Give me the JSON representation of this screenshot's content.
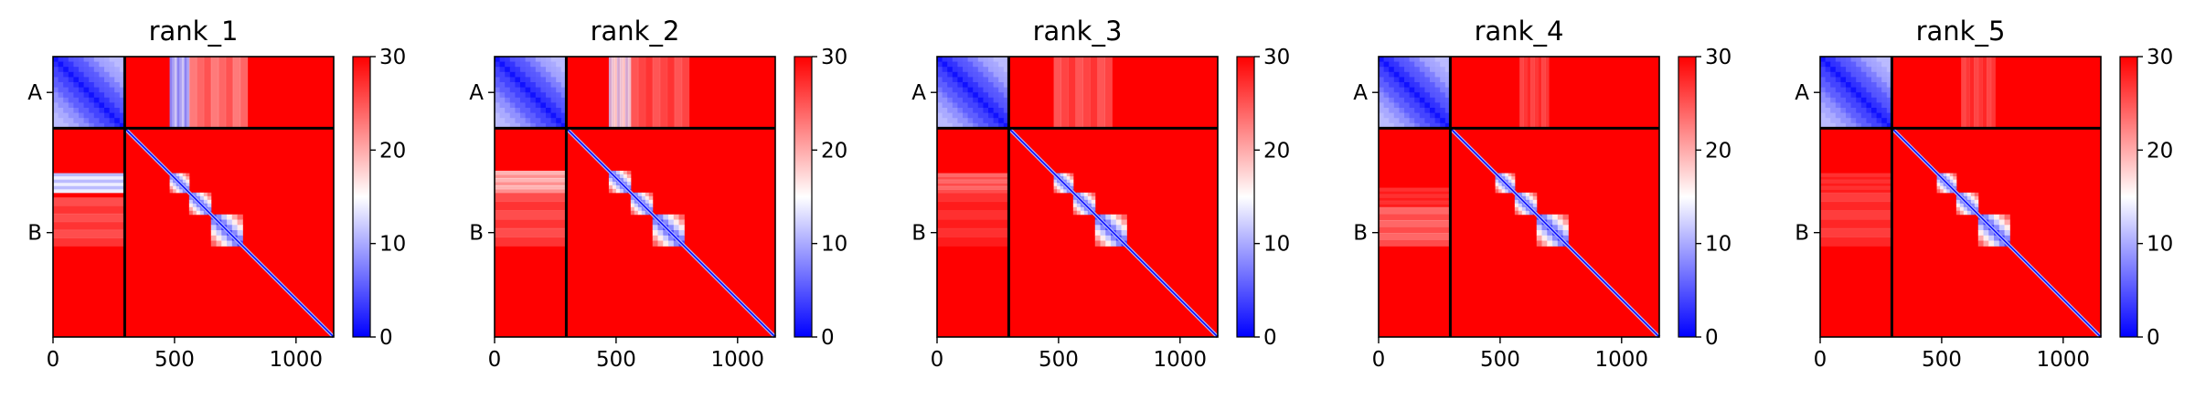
{
  "chart_data": {
    "type": "heatmap",
    "chain_labels": [
      "A",
      "B"
    ],
    "chain_boundary": 295,
    "matrix_size": 1155,
    "xticks": [
      0,
      500,
      1000
    ],
    "colorbar": {
      "vmin": 0,
      "vmax": 30,
      "ticks": [
        0,
        10,
        20,
        30
      ],
      "colors": [
        "#0000ff",
        "#ffffff",
        "#ff0000"
      ]
    },
    "panels": [
      {
        "title": "rank_1",
        "intra_a_strength": 1.0,
        "inter_ab_bands": [
          {
            "ab_start": 480,
            "ab_end": 560,
            "strength": 0.8,
            "level": 10
          },
          {
            "ab_start": 560,
            "ab_end": 800,
            "strength": 0.45,
            "level": 20
          }
        ],
        "inter_ba_bands": [
          {
            "b_start": 480,
            "b_end": 560,
            "strength": 0.85,
            "level": 12
          },
          {
            "b_start": 580,
            "b_end": 780,
            "strength": 0.35,
            "level": 22
          }
        ],
        "diagonal_blocks": [
          [
            480,
            560
          ],
          [
            560,
            650
          ],
          [
            650,
            780
          ]
        ]
      },
      {
        "title": "rank_2",
        "intra_a_strength": 1.0,
        "inter_ab_bands": [
          {
            "ab_start": 470,
            "ab_end": 560,
            "strength": 0.65,
            "level": 14
          },
          {
            "ab_start": 560,
            "ab_end": 800,
            "strength": 0.35,
            "level": 22
          }
        ],
        "inter_ba_bands": [
          {
            "b_start": 470,
            "b_end": 560,
            "strength": 0.55,
            "level": 16
          },
          {
            "b_start": 560,
            "b_end": 780,
            "strength": 0.35,
            "level": 22
          }
        ],
        "diagonal_blocks": [
          [
            470,
            560
          ],
          [
            560,
            650
          ],
          [
            650,
            780
          ]
        ]
      },
      {
        "title": "rank_3",
        "intra_a_strength": 1.0,
        "inter_ab_bands": [
          {
            "ab_start": 480,
            "ab_end": 720,
            "strength": 0.35,
            "level": 22
          }
        ],
        "inter_ba_bands": [
          {
            "b_start": 480,
            "b_end": 560,
            "strength": 0.4,
            "level": 20
          },
          {
            "b_start": 560,
            "b_end": 780,
            "strength": 0.25,
            "level": 24
          }
        ],
        "diagonal_blocks": [
          [
            480,
            560
          ],
          [
            560,
            650
          ],
          [
            650,
            780
          ]
        ]
      },
      {
        "title": "rank_4",
        "intra_a_strength": 1.0,
        "inter_ab_bands": [
          {
            "ab_start": 580,
            "ab_end": 700,
            "strength": 0.3,
            "level": 23
          }
        ],
        "inter_ba_bands": [
          {
            "b_start": 540,
            "b_end": 620,
            "strength": 0.25,
            "level": 24
          },
          {
            "b_start": 620,
            "b_end": 780,
            "strength": 0.4,
            "level": 20
          }
        ],
        "diagonal_blocks": [
          [
            480,
            560
          ],
          [
            560,
            650
          ],
          [
            650,
            780
          ]
        ]
      },
      {
        "title": "rank_5",
        "intra_a_strength": 1.0,
        "inter_ab_bands": [
          {
            "ab_start": 580,
            "ab_end": 720,
            "strength": 0.3,
            "level": 23
          }
        ],
        "inter_ba_bands": [
          {
            "b_start": 480,
            "b_end": 560,
            "strength": 0.25,
            "level": 24
          },
          {
            "b_start": 560,
            "b_end": 780,
            "strength": 0.3,
            "level": 23
          }
        ],
        "diagonal_blocks": [
          [
            480,
            560
          ],
          [
            560,
            650
          ],
          [
            650,
            780
          ]
        ]
      }
    ]
  }
}
